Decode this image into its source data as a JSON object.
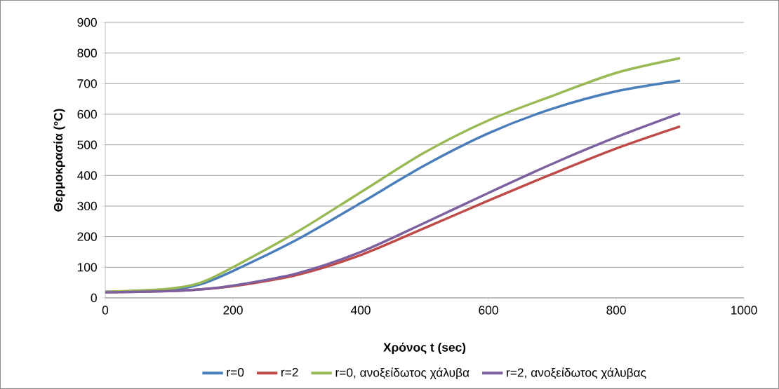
{
  "chart_data": {
    "type": "line",
    "xlabel": "Χρόνος t (sec)",
    "ylabel": "Θερμοκρασία (°C)",
    "x": [
      0,
      100,
      150,
      200,
      300,
      400,
      500,
      600,
      700,
      800,
      900
    ],
    "xlim": [
      0,
      1000
    ],
    "xticks": [
      0,
      200,
      400,
      600,
      800,
      1000
    ],
    "ylim": [
      0,
      900
    ],
    "yticks": [
      0,
      100,
      200,
      300,
      400,
      500,
      600,
      700,
      800,
      900
    ],
    "grid": "y",
    "legend": "bottom",
    "marker": "none",
    "line_style": "solid",
    "series": [
      {
        "name": "r=0",
        "color": "#4a7ebb",
        "values": [
          20,
          25,
          45,
          88,
          190,
          310,
          433,
          538,
          618,
          675,
          710
        ]
      },
      {
        "name": "r=2",
        "color": "#be4b48",
        "values": [
          18,
          22,
          28,
          38,
          75,
          140,
          228,
          318,
          405,
          488,
          560
        ]
      },
      {
        "name": "r=0, ανοξείδωτος χάλυβα",
        "color": "#98b954",
        "values": [
          20,
          30,
          50,
          100,
          215,
          345,
          475,
          580,
          660,
          735,
          783
        ]
      },
      {
        "name": "r=2, ανοξείδωτος χάλυβας",
        "color": "#7d60a0",
        "values": [
          18,
          22,
          28,
          40,
          80,
          150,
          245,
          343,
          438,
          525,
          603
        ]
      }
    ]
  }
}
